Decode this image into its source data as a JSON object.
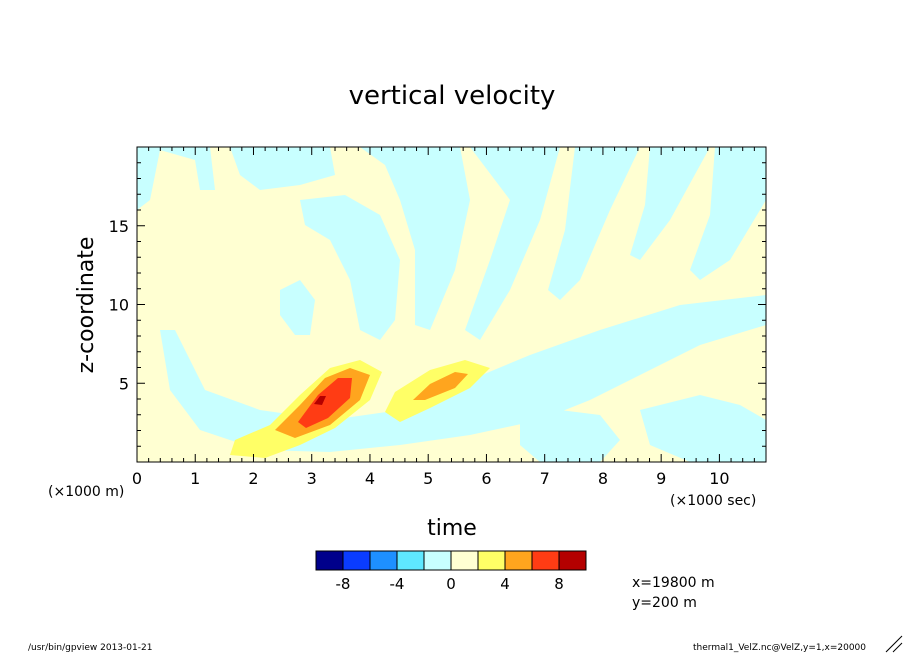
{
  "chart_data": {
    "type": "heatmap",
    "title": "vertical velocity",
    "xlabel": "time",
    "ylabel": "z-coordinate",
    "x_scale_note": "(×1000 sec)",
    "y_scale_note": "(×1000 m)",
    "xlim": [
      0,
      10.8
    ],
    "ylim": [
      0,
      20
    ],
    "x_ticks": [
      "0",
      "1",
      "2",
      "3",
      "4",
      "5",
      "6",
      "7",
      "8",
      "9",
      "10"
    ],
    "y_ticks": [
      "5",
      "10",
      "15"
    ],
    "colorbar": {
      "bins": 10,
      "colors": [
        "#00008b",
        "#0a3cff",
        "#1e90ff",
        "#5fe8ff",
        "#c8ffff",
        "#ffffd2",
        "#ffff66",
        "#ffa51e",
        "#ff3c14",
        "#b40000"
      ],
      "tick_labels": [
        "-8",
        "-4",
        "0",
        "4",
        "8"
      ]
    },
    "features": [
      {
        "level": "positive",
        "x": 3.2,
        "z": 3.5,
        "peak": 9
      },
      {
        "level": "positive",
        "x": 5.0,
        "z": 4.3,
        "peak": 6
      },
      {
        "level": "negative",
        "x": 1.5,
        "z": 2.0,
        "peak": -2
      }
    ]
  },
  "annotations": {
    "location_x": "x=19800  m",
    "location_y": "y=200  m",
    "footer_left": "/usr/bin/gpview  2013-01-21",
    "footer_right": "thermal1_VelZ.nc@VelZ,y=1,x=20000"
  }
}
